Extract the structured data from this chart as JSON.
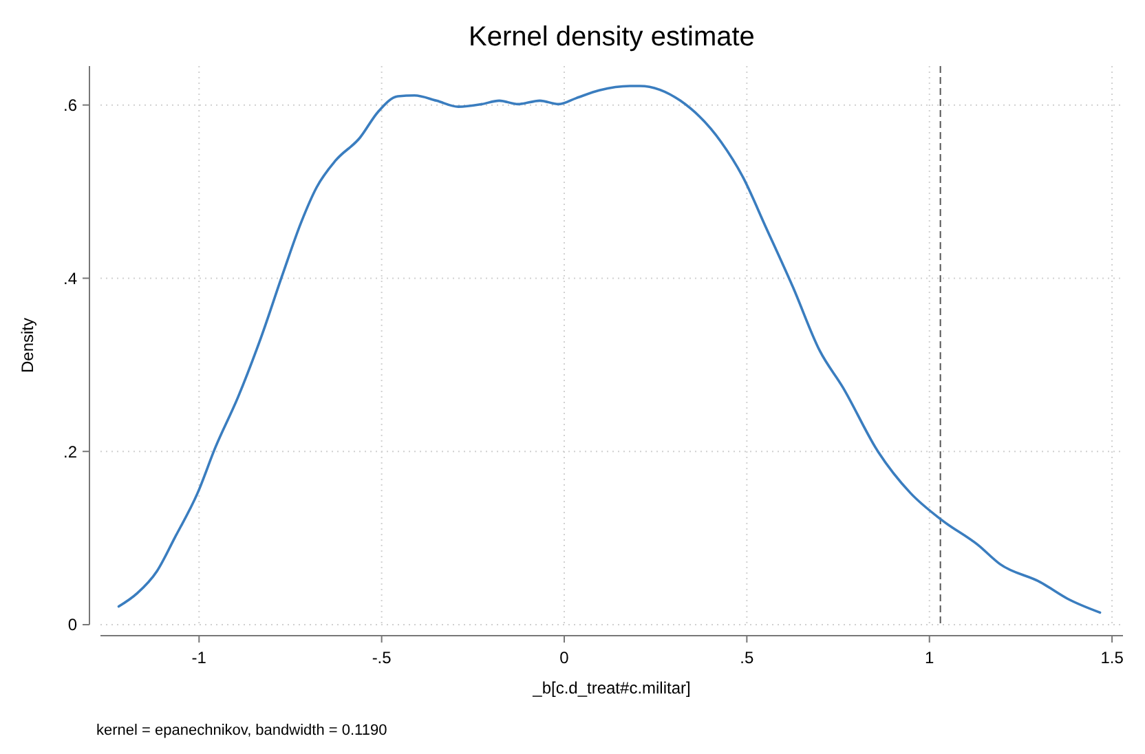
{
  "chart_data": {
    "type": "line",
    "title": "Kernel density estimate",
    "xlabel": "_b[c.d_treat#c.militar]",
    "ylabel": "Density",
    "annotations": [
      "kernel = epanechnikov, bandwidth = 0.1190"
    ],
    "x": [
      -1.22,
      -1.17,
      -1.115,
      -1.067,
      -1.004,
      -0.955,
      -0.893,
      -0.83,
      -0.77,
      -0.72,
      -0.678,
      -0.626,
      -0.56,
      -0.51,
      -0.456,
      -0.41,
      -0.35,
      -0.29,
      -0.226,
      -0.178,
      -0.126,
      -0.067,
      -0.015,
      0.033,
      0.096,
      0.18,
      0.207,
      0.318,
      0.43,
      0.489,
      0.552,
      0.626,
      0.7,
      0.763,
      0.859,
      0.948,
      1.033,
      1.133,
      1.193,
      1.304,
      1.378,
      1.467
    ],
    "series": [
      {
        "color": "#3a7dbf",
        "values": [
          0.021,
          0.036,
          0.062,
          0.1,
          0.152,
          0.205,
          0.263,
          0.332,
          0.406,
          0.465,
          0.505,
          0.536,
          0.562,
          0.592,
          0.61,
          0.611,
          0.605,
          0.598,
          0.601,
          0.605,
          0.601,
          0.605,
          0.601,
          0.608,
          0.617,
          0.622,
          0.622,
          0.605,
          0.557,
          0.517,
          0.459,
          0.39,
          0.316,
          0.274,
          0.2,
          0.152,
          0.121,
          0.092,
          0.07,
          0.049,
          0.03,
          0.014
        ]
      }
    ],
    "xlim": [
      -1.27,
      1.53
    ],
    "ylim": [
      0,
      0.645
    ],
    "xticks": [
      {
        "value": -1,
        "label": "-1"
      },
      {
        "value": -0.5,
        "label": "-.5"
      },
      0,
      {
        "value": 0.5,
        "label": ".5"
      },
      1,
      1.5
    ],
    "yticks": [
      0,
      {
        "value": 0.2,
        "label": ".2"
      },
      {
        "value": 0.4,
        "label": ".4"
      },
      {
        "value": 0.6,
        "label": ".6"
      }
    ],
    "grid": true,
    "marker": "none",
    "line_style": "solid",
    "ref_lines": [
      {
        "axis": "x",
        "value": 1.03,
        "color": "#555555",
        "line_style": "dashed"
      }
    ]
  }
}
